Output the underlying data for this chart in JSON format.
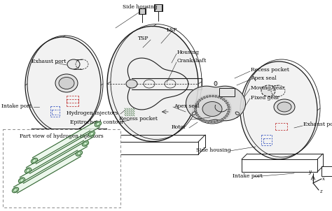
{
  "bg_color": "#ffffff",
  "line_color": "#1a1a1a",
  "dashed_blue": "#2244bb",
  "dashed_red": "#bb2222",
  "green_color": "#336633",
  "green_light": "#88cc88",
  "labels": {
    "side_housing_top": "Side housing",
    "lsp": "LSP",
    "tsp": "TSP",
    "housing": "Housing",
    "crankshaft": "Crankshaft",
    "exhaust_port_left": "Exhaust port",
    "intake_port_left": "Intake port",
    "hydrogen_injectors": "Hydrogen injectors",
    "epitrochoid": "Epitrochoid contour",
    "recess_pocket_right": "Recess pocket",
    "apex_seal_right": "Apex seal",
    "moving_gear": "Moving gear",
    "fixed_gear": "Fixed gear",
    "apex_seal_mid": "Apex seal",
    "recess_pocket_mid": "Recess pocket",
    "rotor": "Rotor",
    "side_housing_bot": "Side housing",
    "intake_port_bot": "Intake port",
    "exhaust_port_right": "Exhaust port",
    "part_view": "Part view of hydrogen injectors"
  },
  "font_size": 5.5
}
